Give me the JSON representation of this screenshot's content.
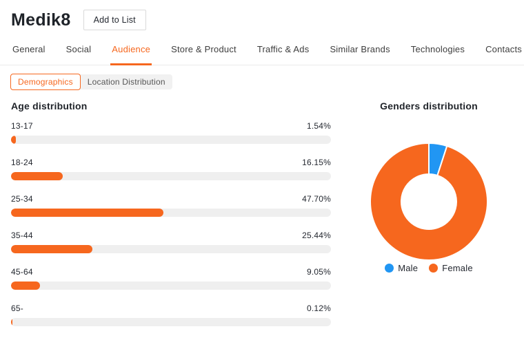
{
  "header": {
    "title": "Medik8",
    "add_button": "Add to List"
  },
  "tabs": [
    {
      "label": "General",
      "active": false
    },
    {
      "label": "Social",
      "active": false
    },
    {
      "label": "Audience",
      "active": true
    },
    {
      "label": "Store & Product",
      "active": false
    },
    {
      "label": "Traffic & Ads",
      "active": false
    },
    {
      "label": "Similar Brands",
      "active": false
    },
    {
      "label": "Technologies",
      "active": false
    },
    {
      "label": "Contacts",
      "active": false
    }
  ],
  "subtabs": [
    {
      "label": "Demographics",
      "active": true
    },
    {
      "label": "Location Distribution",
      "active": false
    }
  ],
  "colors": {
    "accent_orange": "#f6671e",
    "male_blue": "#2196f3",
    "bar_track": "#efefef"
  },
  "chart_data": [
    {
      "type": "bar",
      "orientation": "horizontal",
      "title": "Age distribution",
      "categories": [
        "13-17",
        "18-24",
        "25-34",
        "35-44",
        "45-64",
        "65-"
      ],
      "values": [
        1.54,
        16.15,
        47.7,
        25.44,
        9.05,
        0.12
      ],
      "value_labels": [
        "1.54%",
        "16.15%",
        "47.70%",
        "25.44%",
        "9.05%",
        "0.12%"
      ],
      "xlim": [
        0,
        100
      ],
      "bar_color": "#f6671e",
      "track_color": "#efefef",
      "grid": false
    },
    {
      "type": "pie",
      "donut": true,
      "title": "Genders distribution",
      "labels": [
        "Male",
        "Female"
      ],
      "values": [
        5,
        95
      ],
      "colors": [
        "#2196f3",
        "#f6671e"
      ],
      "legend_position": "bottom",
      "start_angle_deg": 0
    }
  ]
}
